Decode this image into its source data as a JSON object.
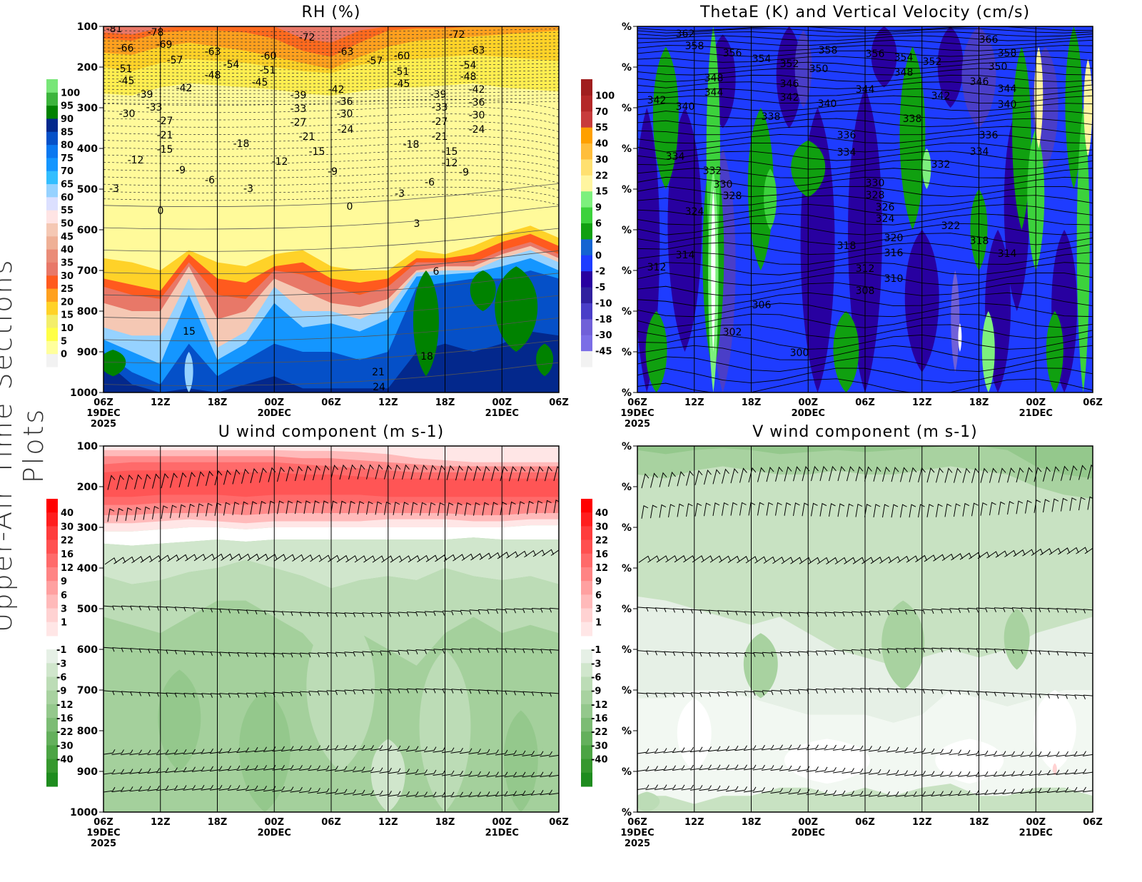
{
  "side_title": "Upper-Air Time Sections Plots",
  "x_axis": {
    "ticks": [
      "06Z",
      "12Z",
      "18Z",
      "00Z",
      "06Z",
      "12Z",
      "18Z",
      "00Z",
      "06Z"
    ],
    "dates": [
      {
        "tick": 0,
        "lines": [
          "19DEC",
          "2025"
        ]
      },
      {
        "tick": 3,
        "lines": [
          "20DEC"
        ]
      },
      {
        "tick": 7,
        "lines": [
          "21DEC"
        ]
      }
    ]
  },
  "chart_data": [
    {
      "type": "heatmap",
      "id": "rh",
      "title": "RH (%)",
      "xlabel": "",
      "ylabel": "",
      "y_ticks": [
        "100",
        "200",
        "300",
        "400",
        "500",
        "600",
        "700",
        "800",
        "900",
        "1000"
      ],
      "ylim": [
        1000,
        100
      ],
      "colorbar": {
        "labels": [
          "0",
          "5",
          "10",
          "15",
          "20",
          "25",
          "30",
          "35",
          "40",
          "45",
          "50",
          "55",
          "60",
          "65",
          "70",
          "75",
          "80",
          "85",
          "90",
          "95",
          "100"
        ],
        "colors": [
          "#f2f2f2",
          "#ffff9c",
          "#ffff46",
          "#f3ee6a",
          "#ffd228",
          "#ffa01e",
          "#ff5a1e",
          "#e87868",
          "#ea8c78",
          "#efb096",
          "#f5c8b4",
          "#ffe4e4",
          "#dce0ff",
          "#96d2ff",
          "#32beff",
          "#1496ff",
          "#0a78f0",
          "#0550c8",
          "#03288c",
          "#008200",
          "#3cb43c",
          "#78e678"
        ]
      },
      "contour_labels": [
        "-81",
        "-78",
        "-72",
        "-72",
        "-66",
        "-69",
        "-63",
        "-63",
        "-63",
        "-60",
        "-60",
        "-57",
        "-57",
        "-54",
        "-54",
        "-51",
        "-51",
        "-51",
        "-48",
        "-48",
        "-45",
        "-45",
        "-45",
        "-42",
        "-42",
        "-42",
        "-39",
        "-39",
        "-39",
        "-36",
        "-36",
        "-33",
        "-33",
        "-33",
        "-30",
        "-30",
        "-30",
        "-27",
        "-27",
        "-27",
        "-24",
        "-24",
        "-21",
        "-21",
        "-21",
        "-18",
        "-18",
        "-15",
        "-15",
        "-15",
        "-12",
        "-12",
        "-12",
        "-9",
        "-9",
        "-9",
        "-6",
        "-6",
        "-3",
        "-3",
        "-3",
        "0",
        "0",
        "3",
        "6",
        "15",
        "18",
        "21",
        "24"
      ]
    },
    {
      "type": "heatmap",
      "id": "thetae",
      "title": "ThetaE (K) and Vertical Velocity (cm/s)",
      "y_ticks": [
        "%",
        "%",
        "%",
        "%",
        "%",
        "%",
        "%",
        "%",
        "%",
        "%"
      ],
      "colorbar": {
        "labels": [
          "-45",
          "-30",
          "-18",
          "-10",
          "-5",
          "-2",
          "0",
          "2",
          "6",
          "9",
          "15",
          "22",
          "30",
          "40",
          "55",
          "70",
          "100"
        ],
        "colors": [
          "#f2f2f2",
          "#7b6ee6",
          "#7060d8",
          "#4a3ec8",
          "#30209f",
          "#2800a0",
          "#1e3cff",
          "#1464d2",
          "#10a010",
          "#3cd23c",
          "#7df07d",
          "#fff5a0",
          "#ffe070",
          "#ffbe3c",
          "#ffa000",
          "#c83c3c",
          "#b42828",
          "#a01e1e"
        ]
      },
      "contour_labels": [
        "362",
        "358",
        "356",
        "354",
        "352",
        "350",
        "358",
        "356",
        "354",
        "352",
        "366",
        "358",
        "350",
        "348",
        "344",
        "346",
        "342",
        "348",
        "344",
        "346",
        "344",
        "342",
        "340",
        "340",
        "342",
        "340",
        "338",
        "338",
        "336",
        "336",
        "334",
        "334",
        "334",
        "332",
        "332",
        "330",
        "330",
        "328",
        "328",
        "326",
        "324",
        "324",
        "322",
        "320",
        "318",
        "318",
        "316",
        "314",
        "314",
        "312",
        "312",
        "310",
        "308",
        "306",
        "302",
        "300"
      ]
    },
    {
      "type": "heatmap",
      "id": "u",
      "title": "U wind component (m s-1)",
      "y_ticks": [
        "100",
        "200",
        "300",
        "400",
        "500",
        "600",
        "700",
        "800",
        "900",
        "1000"
      ],
      "ylim": [
        1000,
        100
      ],
      "colorbar": {
        "labels_pos": [
          "40",
          "30",
          "22",
          "16",
          "12",
          "9",
          "6",
          "3",
          "1"
        ],
        "labels_neg": [
          "-1",
          "-3",
          "-6",
          "-9",
          "-12",
          "-16",
          "-22",
          "-30",
          "-40"
        ],
        "colors_pos": [
          "#ff0000",
          "#ff1e1e",
          "#ff3c3c",
          "#ff5050",
          "#ff6a6a",
          "#ff8484",
          "#ffa0a0",
          "#ffbaba",
          "#ffd2d2",
          "#ffe6e6"
        ],
        "colors_neg": [
          "#e6f0e6",
          "#d0e6cc",
          "#bcdcb6",
          "#a8d2a0",
          "#94c88c",
          "#7cbc74",
          "#64b05c",
          "#4ca444",
          "#36982e",
          "#1e8c1e"
        ]
      }
    },
    {
      "type": "heatmap",
      "id": "v",
      "title": "V wind component (m s-1)",
      "y_ticks": [
        "%",
        "%",
        "%",
        "%",
        "%",
        "%",
        "%",
        "%",
        "%",
        "%"
      ],
      "colorbar": {
        "labels_pos": [
          "40",
          "30",
          "22",
          "16",
          "12",
          "9",
          "6",
          "3",
          "1"
        ],
        "labels_neg": [
          "-1",
          "-3",
          "-6",
          "-9",
          "-12",
          "-16",
          "-22",
          "-30",
          "-40"
        ],
        "colors_pos": [
          "#ff0000",
          "#ff1e1e",
          "#ff3c3c",
          "#ff5050",
          "#ff6a6a",
          "#ff8484",
          "#ffa0a0",
          "#ffbaba",
          "#ffd2d2",
          "#ffe6e6"
        ],
        "colors_neg": [
          "#e6f0e6",
          "#d0e6cc",
          "#bcdcb6",
          "#a8d2a0",
          "#94c88c",
          "#7cbc74",
          "#64b05c",
          "#4ca444",
          "#36982e",
          "#1e8c1e"
        ]
      }
    }
  ]
}
